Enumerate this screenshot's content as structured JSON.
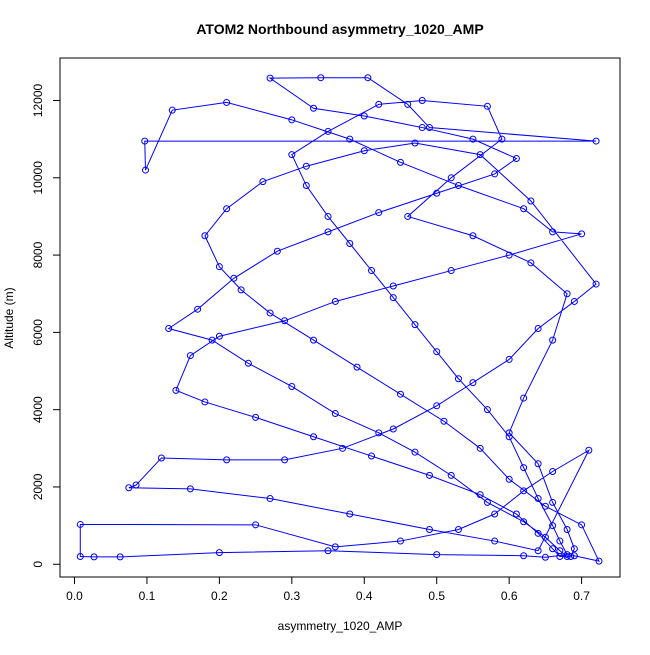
{
  "chart_data": {
    "type": "line",
    "title": "ATOM2 Northbound asymmetry_1020_AMP",
    "x_label": "asymmetry_1020_AMP",
    "y_label": "Altitude (m)",
    "color": "#0000ff",
    "x": [
      0.68,
      0.67,
      0.65,
      0.62,
      0.57,
      0.52,
      0.47,
      0.42,
      0.36,
      0.3,
      0.24,
      0.19,
      0.13,
      0.17,
      0.22,
      0.28,
      0.35,
      0.42,
      0.5,
      0.58,
      0.61,
      0.55,
      0.48,
      0.4,
      0.33,
      0.27,
      0.34,
      0.405,
      0.46,
      0.49,
      0.72,
      0.097,
      0.098,
      0.135,
      0.21,
      0.3,
      0.38,
      0.45,
      0.53,
      0.62,
      0.66,
      0.7,
      0.6,
      0.52,
      0.44,
      0.36,
      0.29,
      0.2,
      0.16,
      0.14,
      0.18,
      0.25,
      0.33,
      0.41,
      0.49,
      0.56,
      0.61,
      0.64,
      0.66,
      0.67,
      0.69,
      0.724,
      0.7,
      0.65,
      0.6,
      0.56,
      0.51,
      0.45,
      0.39,
      0.33,
      0.27,
      0.23,
      0.2,
      0.18,
      0.21,
      0.26,
      0.32,
      0.4,
      0.47,
      0.56,
      0.63,
      0.72,
      0.69,
      0.64,
      0.6,
      0.55,
      0.5,
      0.44,
      0.37,
      0.29,
      0.21,
      0.12,
      0.085,
      0.075,
      0.16,
      0.27,
      0.38,
      0.49,
      0.58,
      0.64,
      0.71,
      0.66,
      0.62,
      0.58,
      0.53,
      0.45,
      0.36,
      0.25,
      0.008,
      0.008,
      0.027,
      0.063,
      0.2,
      0.35,
      0.5,
      0.62,
      0.65,
      0.68,
      0.67,
      0.66,
      0.64,
      0.62,
      0.6,
      0.57,
      0.53,
      0.5,
      0.47,
      0.44,
      0.41,
      0.38,
      0.35,
      0.32,
      0.3,
      0.35,
      0.42,
      0.48,
      0.57,
      0.59,
      0.52,
      0.46,
      0.55,
      0.63,
      0.68,
      0.66,
      0.62,
      0.6,
      0.64,
      0.66,
      0.68,
      0.69,
      0.685
    ],
    "values": [
      200,
      350,
      700,
      1100,
      1600,
      2300,
      2900,
      3400,
      3900,
      4600,
      5200,
      5800,
      6100,
      6600,
      7400,
      8100,
      8600,
      9100,
      9600,
      10100,
      10500,
      11000,
      11300,
      11600,
      11800,
      12580,
      12590,
      12590,
      11900,
      11300,
      10950,
      10950,
      10200,
      11750,
      11950,
      11500,
      11000,
      10400,
      9800,
      9200,
      8600,
      8550,
      8000,
      7600,
      7200,
      6800,
      6300,
      5900,
      5400,
      4500,
      4200,
      3800,
      3300,
      2800,
      2300,
      1800,
      1300,
      800,
      400,
      200,
      220,
      80,
      1020,
      1500,
      2200,
      3000,
      3700,
      4400,
      5100,
      5800,
      6500,
      7100,
      7700,
      8500,
      9200,
      9900,
      10300,
      10700,
      10900,
      10600,
      9400,
      7250,
      6800,
      6100,
      5300,
      4700,
      4100,
      3500,
      3000,
      2700,
      2700,
      2750,
      2050,
      1980,
      1950,
      1700,
      1300,
      900,
      600,
      350,
      2950,
      2400,
      1900,
      1300,
      900,
      600,
      450,
      1020,
      1030,
      200,
      190,
      190,
      300,
      350,
      250,
      220,
      180,
      250,
      600,
      1000,
      1700,
      2500,
      3300,
      4000,
      4800,
      5500,
      6200,
      6900,
      7600,
      8300,
      9000,
      9800,
      10600,
      11200,
      11900,
      12000,
      11850,
      11000,
      10000,
      9000,
      8500,
      7800,
      7000,
      5800,
      4300,
      3400,
      2600,
      1600,
      900,
      400,
      200
    ],
    "xlim": [
      -0.02,
      0.753
    ],
    "ylim": [
      -330,
      13100
    ],
    "xticks": [
      {
        "value": 0,
        "label": "0.0"
      },
      0.1,
      0.2,
      0.3,
      0.4,
      0.5,
      0.6,
      0.7
    ],
    "yticks": [
      0,
      2000,
      4000,
      6000,
      8000,
      10000,
      12000
    ]
  }
}
